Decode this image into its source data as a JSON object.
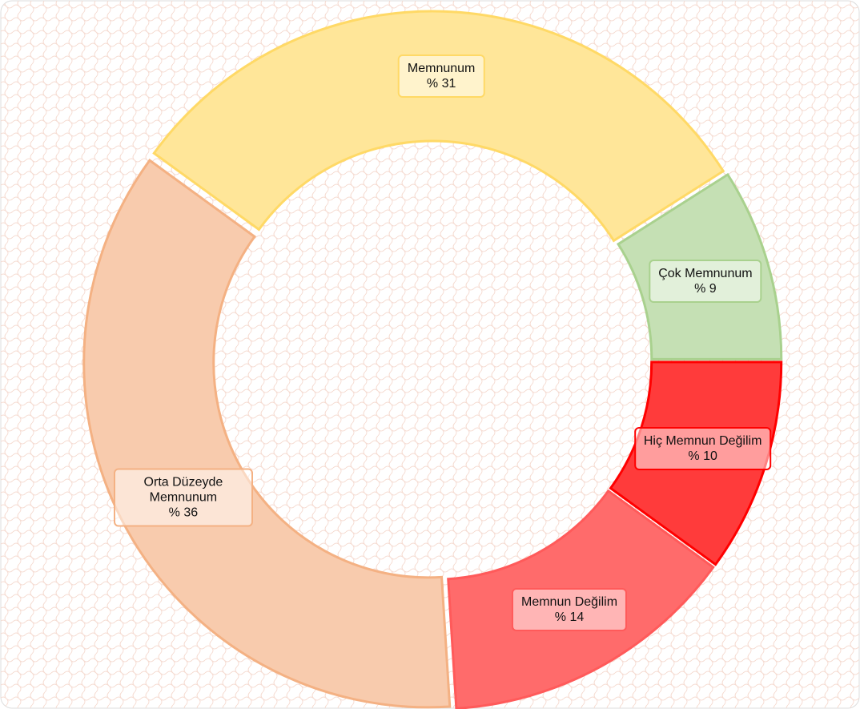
{
  "chart_data": {
    "type": "donut",
    "categories": [
      "Çok Memnunum",
      "Hiç Memnun Değilim",
      "Memnun Değilim",
      "Orta Düzeyde Memnunum",
      "Memnunum"
    ],
    "values": [
      9,
      10,
      14,
      36,
      31
    ],
    "value_labels": [
      "% 9",
      "% 10",
      "% 14",
      "% 36",
      "% 31"
    ],
    "colors": [
      "#c5e0b4",
      "#ff3b3b",
      "#ff6b6b",
      "#f8cbad",
      "#ffe699"
    ],
    "edge_colors": [
      "#a9d18e",
      "#ff0000",
      "#ff5a5a",
      "#f4b183",
      "#ffd966"
    ]
  }
}
